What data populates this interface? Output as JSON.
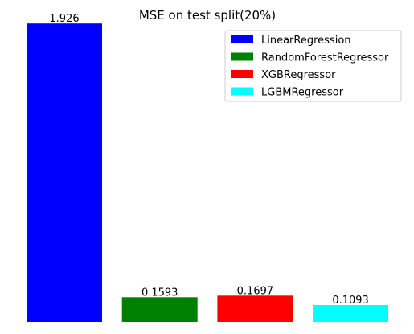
{
  "chart_data": {
    "type": "bar",
    "title": "MSE on test split(20%)",
    "xlabel": "",
    "ylabel": "",
    "categories": [
      "LinearRegression",
      "RandomForestRegressor",
      "XGBRegressor",
      "LGBMRegressor"
    ],
    "values": [
      1.926,
      0.1593,
      0.1697,
      0.1093
    ],
    "value_labels": [
      "1.926",
      "0.1593",
      "0.1697",
      "0.1093"
    ],
    "colors": [
      "#0000ff",
      "#008000",
      "#ff0000",
      "#00ffff"
    ],
    "ylim": [
      0,
      2.0
    ],
    "axes_visible": false,
    "grid": false,
    "legend": {
      "position": "top-right",
      "entries": [
        "LinearRegression",
        "RandomForestRegressor",
        "XGBRegressor",
        "LGBMRegressor"
      ]
    }
  }
}
